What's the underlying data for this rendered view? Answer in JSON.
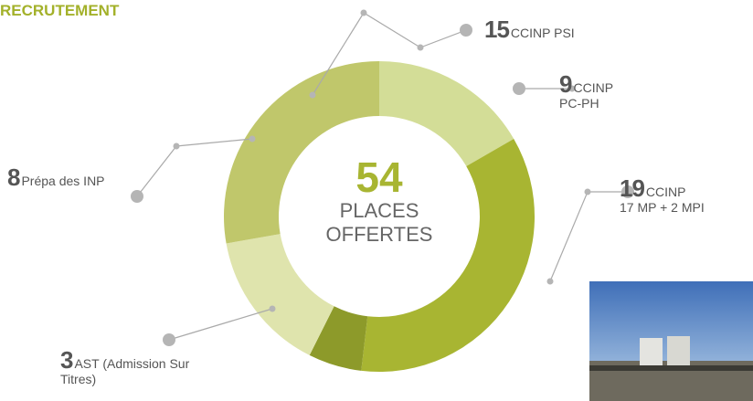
{
  "chart_data": {
    "type": "donut",
    "title": "RECRUTEMENT",
    "center_value": 54,
    "center_lines": [
      "PLACES",
      "OFFERTES"
    ],
    "categories": [
      "CCINP",
      "CCINP",
      "AST (Admission Sur Titres)",
      "Prépa des INP",
      "CCINP PSI"
    ],
    "details": [
      "PC-PH",
      "17 MP + 2 MPI",
      null,
      null,
      null
    ],
    "values": [
      9,
      19,
      3,
      8,
      15
    ],
    "colors": [
      "#d3dd97",
      "#a8b532",
      "#8d9a2a",
      "#dfe4ad",
      "#c0c76b"
    ]
  }
}
